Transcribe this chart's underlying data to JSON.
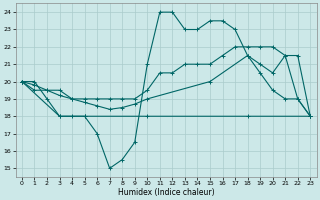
{
  "xlabel": "Humidex (Indice chaleur)",
  "xlim": [
    -0.5,
    23.5
  ],
  "ylim": [
    14.5,
    24.5
  ],
  "yticks": [
    15,
    16,
    17,
    18,
    19,
    20,
    21,
    22,
    23,
    24
  ],
  "xticks": [
    0,
    1,
    2,
    3,
    4,
    5,
    6,
    7,
    8,
    9,
    10,
    11,
    12,
    13,
    14,
    15,
    16,
    17,
    18,
    19,
    20,
    21,
    22,
    23
  ],
  "background_color": "#cce8e8",
  "grid_color": "#aacccc",
  "line_color": "#006666",
  "line1": {
    "x": [
      0,
      1,
      2,
      3,
      4,
      5,
      6,
      7,
      8,
      9,
      10,
      11,
      12,
      13,
      14,
      15,
      16,
      17,
      18,
      19,
      20,
      21,
      22,
      23
    ],
    "y": [
      20,
      20,
      19,
      18,
      18,
      18,
      17,
      15,
      15.5,
      16.5,
      21,
      24,
      24,
      23,
      23,
      23.5,
      23.5,
      23,
      21.5,
      20.5,
      19.5,
      19,
      19,
      18
    ]
  },
  "line2": {
    "x": [
      0,
      1,
      2,
      3,
      4,
      5,
      6,
      7,
      8,
      9,
      10,
      11,
      12,
      13,
      14,
      15,
      16,
      17,
      18,
      19,
      20,
      21,
      22,
      23
    ],
    "y": [
      20,
      19.5,
      19.5,
      19.5,
      19,
      19,
      19,
      19,
      19,
      19,
      19.5,
      20.5,
      20.5,
      21,
      21,
      21,
      21.5,
      22,
      22,
      22,
      22,
      21.5,
      19,
      18
    ]
  },
  "line3": {
    "x": [
      0,
      1,
      2,
      3,
      4,
      5,
      6,
      7,
      8,
      9,
      10,
      15,
      18,
      19,
      20,
      21,
      22,
      23
    ],
    "y": [
      20,
      19.8,
      19.5,
      19.2,
      19.0,
      18.8,
      18.6,
      18.4,
      18.5,
      18.7,
      19.0,
      20.0,
      21.5,
      21.0,
      20.5,
      21.5,
      21.5,
      18
    ]
  },
  "line4": {
    "x": [
      0,
      3,
      5,
      10,
      18,
      23
    ],
    "y": [
      20,
      18,
      18,
      18,
      18,
      18
    ]
  }
}
